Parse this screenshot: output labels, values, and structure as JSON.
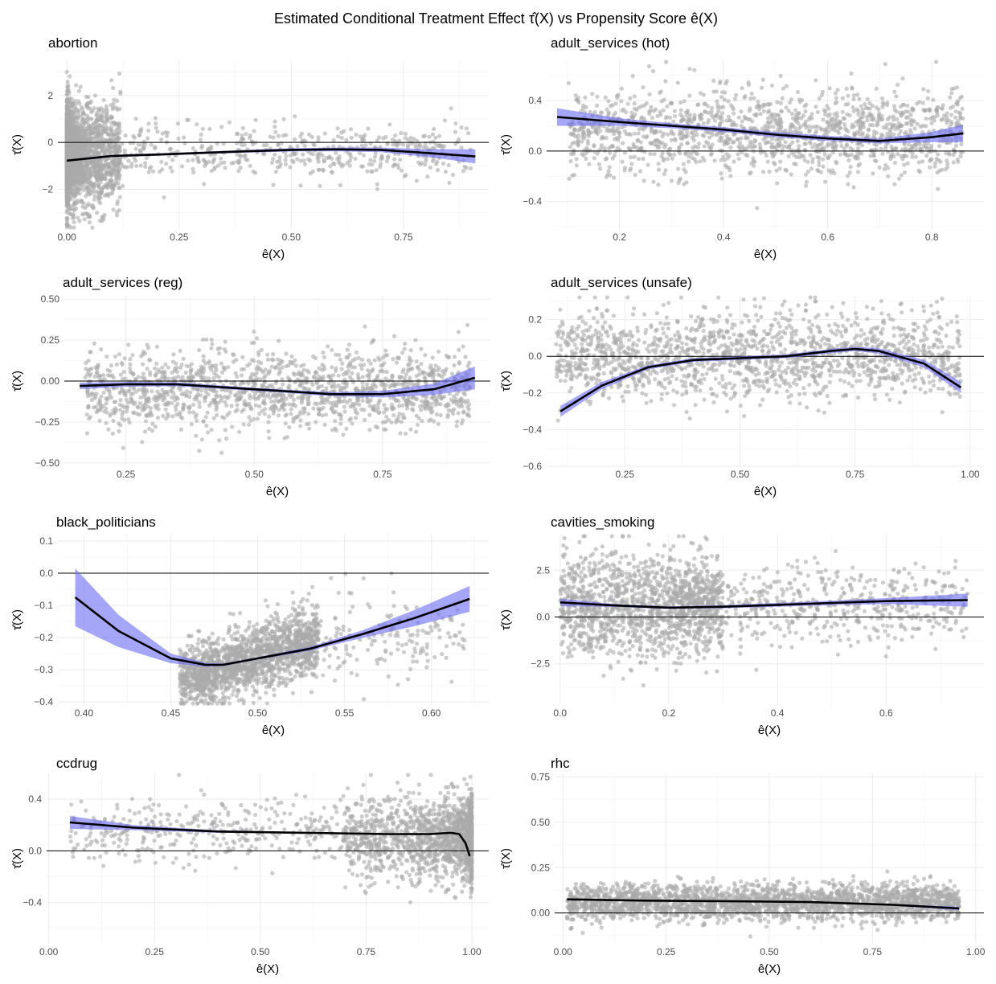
{
  "title": "Estimated Conditional Treatment Effect τ̂(X) vs Propensity Score ê(X)",
  "colors": {
    "points": "#aaaaaa",
    "band": "#6a6af5",
    "line": "#000000",
    "grid": "#ebebeb"
  },
  "chart_data": [
    {
      "type": "scatter",
      "title": "abortion",
      "xlabel": "ê(X)",
      "ylabel": "τ̂(X)",
      "xlim": [
        -0.02,
        0.94
      ],
      "ylim": [
        -3.7,
        3.5
      ],
      "xticks": [
        0,
        0.25,
        0.5,
        0.75
      ],
      "xtick_labels": [
        "0.00",
        "0.25",
        "0.50",
        "0.75"
      ],
      "yticks": [
        -2,
        0,
        2
      ],
      "ytick_labels": [
        "−2",
        "0",
        "2"
      ],
      "points": {
        "clusters": [
          {
            "n": 2200,
            "x": [
              0,
              0.12
            ],
            "y_center": -0.5,
            "y_sd": 1.1,
            "skew": 3
          },
          {
            "n": 500,
            "x": [
              0.1,
              0.9
            ],
            "y_center": -0.4,
            "y_sd": 0.6
          }
        ]
      },
      "fit": {
        "x": [
          0,
          0.1,
          0.2,
          0.3,
          0.4,
          0.5,
          0.6,
          0.7,
          0.8,
          0.91
        ],
        "y": [
          -0.78,
          -0.58,
          -0.52,
          -0.45,
          -0.38,
          -0.32,
          -0.3,
          -0.32,
          -0.45,
          -0.6
        ],
        "band": [
          0.04,
          0.05,
          0.05,
          0.05,
          0.06,
          0.07,
          0.08,
          0.1,
          0.16,
          0.3
        ]
      }
    },
    {
      "type": "scatter",
      "title": "adult_services (hot)",
      "xlabel": "ê(X)",
      "ylabel": "τ̂(X)",
      "xlim": [
        0.06,
        0.9
      ],
      "ylim": [
        -0.62,
        0.72
      ],
      "xticks": [
        0.2,
        0.4,
        0.6,
        0.8
      ],
      "xtick_labels": [
        "0.2",
        "0.4",
        "0.6",
        "0.8"
      ],
      "yticks": [
        -0.4,
        0,
        0.4
      ],
      "ytick_labels": [
        "−0.4",
        "0.0",
        "0.4"
      ],
      "points": {
        "clusters": [
          {
            "n": 1500,
            "x": [
              0.1,
              0.86
            ],
            "y_center": 0.15,
            "y_sd": 0.17
          }
        ]
      },
      "fit": {
        "x": [
          0.08,
          0.2,
          0.3,
          0.4,
          0.5,
          0.6,
          0.7,
          0.8,
          0.86
        ],
        "y": [
          0.27,
          0.23,
          0.2,
          0.17,
          0.13,
          0.1,
          0.08,
          0.11,
          0.14
        ],
        "band": [
          0.07,
          0.03,
          0.02,
          0.02,
          0.02,
          0.02,
          0.02,
          0.04,
          0.07
        ]
      }
    },
    {
      "type": "scatter",
      "title": "adult_services (reg)",
      "xlabel": "ê(X)",
      "ylabel": "τ̂(X)",
      "xlim": [
        0.13,
        0.96
      ],
      "ylim": [
        -0.52,
        0.52
      ],
      "xticks": [
        0.25,
        0.5,
        0.75
      ],
      "xtick_labels": [
        "0.25",
        "0.50",
        "0.75"
      ],
      "yticks": [
        -0.5,
        -0.25,
        0,
        0.25,
        0.5
      ],
      "ytick_labels": [
        "−0.50",
        "−0.25",
        "0.00",
        "0.25",
        "0.50"
      ],
      "points": {
        "clusters": [
          {
            "n": 1500,
            "x": [
              0.17,
              0.92
            ],
            "y_center": -0.05,
            "y_sd": 0.12
          }
        ]
      },
      "fit": {
        "x": [
          0.16,
          0.25,
          0.35,
          0.45,
          0.55,
          0.65,
          0.75,
          0.85,
          0.93
        ],
        "y": [
          -0.03,
          -0.02,
          -0.02,
          -0.04,
          -0.06,
          -0.08,
          -0.08,
          -0.05,
          0.02
        ],
        "band": [
          0.02,
          0.015,
          0.012,
          0.01,
          0.01,
          0.012,
          0.02,
          0.035,
          0.07
        ]
      }
    },
    {
      "type": "scatter",
      "title": "adult_services (unsafe)",
      "xlabel": "ê(X)",
      "ylabel": "τ̂(X)",
      "xlim": [
        0.08,
        1.03
      ],
      "ylim": [
        -0.6,
        0.33
      ],
      "xticks": [
        0.25,
        0.5,
        0.75,
        1.0
      ],
      "xtick_labels": [
        "0.25",
        "0.50",
        "0.75",
        "1.00"
      ],
      "yticks": [
        -0.6,
        -0.4,
        -0.2,
        0,
        0.2
      ],
      "ytick_labels": [
        "−0.6",
        "−0.4",
        "−0.2",
        "0.0",
        "0.2"
      ],
      "points": {
        "clusters": [
          {
            "n": 1600,
            "x": [
              0.1,
              0.98
            ],
            "y_center": 0.0,
            "y_sd": 0.12
          }
        ]
      },
      "fit": {
        "x": [
          0.11,
          0.2,
          0.3,
          0.4,
          0.5,
          0.6,
          0.7,
          0.75,
          0.8,
          0.9,
          0.98
        ],
        "y": [
          -0.3,
          -0.16,
          -0.06,
          -0.02,
          -0.01,
          0.0,
          0.03,
          0.04,
          0.03,
          -0.04,
          -0.17
        ],
        "band": [
          0.03,
          0.02,
          0.012,
          0.01,
          0.01,
          0.01,
          0.012,
          0.012,
          0.015,
          0.02,
          0.03
        ]
      }
    },
    {
      "type": "scatter",
      "title": "black_politicians",
      "xlabel": "ê(X)",
      "ylabel": "τ̂(X)",
      "xlim": [
        0.385,
        0.633
      ],
      "ylim": [
        -0.41,
        0.12
      ],
      "xticks": [
        0.4,
        0.45,
        0.5,
        0.55,
        0.6
      ],
      "xtick_labels": [
        "0.40",
        "0.45",
        "0.50",
        "0.55",
        "0.60"
      ],
      "yticks": [
        -0.4,
        -0.3,
        -0.2,
        -0.1,
        0,
        0.1
      ],
      "ytick_labels": [
        "−0.4",
        "−0.3",
        "−0.2",
        "−0.1",
        "0.0",
        "0.1"
      ],
      "points": {
        "clusters": [
          {
            "n": 1800,
            "x": [
              0.455,
              0.535
            ],
            "y_center": -0.27,
            "y_sd": 0.05,
            "corr": 1.6
          },
          {
            "n": 200,
            "x": [
              0.52,
              0.62
            ],
            "y_center": -0.2,
            "y_sd": 0.06
          }
        ]
      },
      "fit": {
        "x": [
          0.395,
          0.42,
          0.45,
          0.47,
          0.48,
          0.5,
          0.53,
          0.56,
          0.59,
          0.622
        ],
        "y": [
          -0.075,
          -0.18,
          -0.265,
          -0.285,
          -0.285,
          -0.265,
          -0.235,
          -0.19,
          -0.14,
          -0.08
        ],
        "band": [
          0.09,
          0.05,
          0.015,
          0.006,
          0.004,
          0.004,
          0.006,
          0.012,
          0.025,
          0.04
        ]
      }
    },
    {
      "type": "scatter",
      "title": "cavities_smoking",
      "xlabel": "ê(X)",
      "ylabel": "τ̂(X)",
      "xlim": [
        -0.01,
        0.78
      ],
      "ylim": [
        -4.7,
        4.4
      ],
      "xticks": [
        0,
        0.2,
        0.4,
        0.6
      ],
      "xtick_labels": [
        "0.0",
        "0.2",
        "0.4",
        "0.6"
      ],
      "yticks": [
        -2.5,
        0,
        2.5
      ],
      "ytick_labels": [
        "−2.5",
        "0.0",
        "2.5"
      ],
      "points": {
        "clusters": [
          {
            "n": 1400,
            "x": [
              0,
              0.3
            ],
            "y_center": 0.6,
            "y_sd": 1.4
          },
          {
            "n": 600,
            "x": [
              0.2,
              0.75
            ],
            "y_center": 0.7,
            "y_sd": 1.0
          }
        ]
      },
      "fit": {
        "x": [
          0,
          0.1,
          0.2,
          0.3,
          0.4,
          0.5,
          0.6,
          0.75
        ],
        "y": [
          0.78,
          0.62,
          0.5,
          0.55,
          0.65,
          0.75,
          0.85,
          0.9
        ],
        "band": [
          0.2,
          0.08,
          0.07,
          0.08,
          0.1,
          0.12,
          0.16,
          0.35
        ]
      }
    },
    {
      "type": "scatter",
      "title": "ccdrug",
      "xlabel": "ê(X)",
      "ylabel": "τ̂(X)",
      "xlim": [
        -0.005,
        1.04
      ],
      "ylim": [
        -0.72,
        0.6
      ],
      "xticks": [
        0,
        0.25,
        0.5,
        0.75,
        1.0
      ],
      "xtick_labels": [
        "0.00",
        "0.25",
        "0.50",
        "0.75",
        "1.00"
      ],
      "yticks": [
        -0.4,
        0,
        0.4
      ],
      "ytick_labels": [
        "−0.4",
        "0.0",
        "0.4"
      ],
      "points": {
        "clusters": [
          {
            "n": 1600,
            "x": [
              0.7,
              1.0
            ],
            "y_center": 0.1,
            "y_sd": 0.16,
            "skew": 2.5
          },
          {
            "n": 400,
            "x": [
              0.05,
              0.75
            ],
            "y_center": 0.15,
            "y_sd": 0.12
          }
        ]
      },
      "fit": {
        "x": [
          0.05,
          0.2,
          0.4,
          0.6,
          0.8,
          0.9,
          0.95,
          0.97,
          0.985,
          0.995
        ],
        "y": [
          0.22,
          0.18,
          0.15,
          0.14,
          0.13,
          0.13,
          0.14,
          0.13,
          0.06,
          -0.04
        ],
        "band": [
          0.05,
          0.02,
          0.01,
          0.006,
          0.004,
          0.004,
          0.005,
          0.006,
          0.01,
          0.015
        ]
      }
    },
    {
      "type": "scatter",
      "title": "rhc",
      "xlabel": "ê(X)",
      "ylabel": "τ̂(X)",
      "xlim": [
        -0.02,
        1.02
      ],
      "ylim": [
        -0.17,
        0.77
      ],
      "xticks": [
        0,
        0.25,
        0.5,
        0.75,
        1.0
      ],
      "xtick_labels": [
        "0.00",
        "0.25",
        "0.50",
        "0.75",
        "1.00"
      ],
      "yticks": [
        0,
        0.25,
        0.5,
        0.75
      ],
      "ytick_labels": [
        "0.00",
        "0.25",
        "0.50",
        "0.75"
      ],
      "points": {
        "clusters": [
          {
            "n": 2400,
            "x": [
              0.01,
              0.96
            ],
            "y_center": 0.06,
            "y_sd": 0.05
          }
        ]
      },
      "fit": {
        "x": [
          0.01,
          0.2,
          0.4,
          0.6,
          0.8,
          0.96
        ],
        "y": [
          0.075,
          0.068,
          0.065,
          0.06,
          0.045,
          0.025
        ],
        "band": [
          0.006,
          0.004,
          0.004,
          0.004,
          0.005,
          0.01
        ]
      }
    }
  ]
}
